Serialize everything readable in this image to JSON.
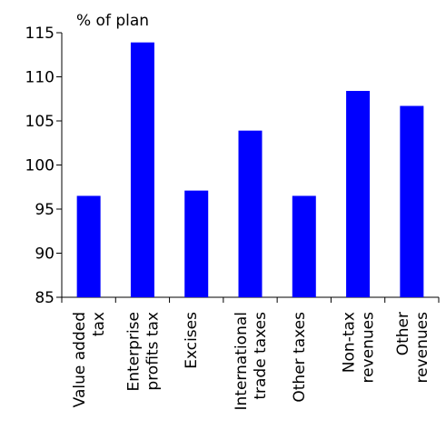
{
  "chart_data": {
    "type": "bar",
    "title": "% of plan",
    "categories": [
      "Value added\ntax",
      "Enterprise\nprofits tax",
      "Excises",
      "International\ntrade taxes",
      "Other taxes",
      "Non-tax\nrevenues",
      "Other\nrevenues"
    ],
    "values": [
      96.5,
      113.9,
      97.1,
      103.9,
      96.5,
      108.4,
      106.7
    ],
    "color": "#0000ff",
    "ylim": [
      85,
      115
    ],
    "yticks": [
      85,
      90,
      95,
      100,
      105,
      110,
      115
    ],
    "grid": false
  }
}
